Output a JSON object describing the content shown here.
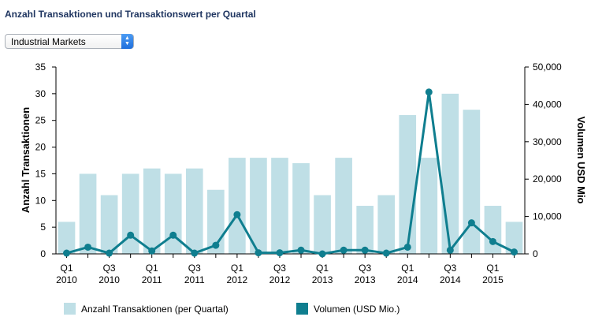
{
  "page": {
    "title": "Anzahl Transaktionen und Transaktionswert per Quartal"
  },
  "dropdown": {
    "selected": "Industrial Markets"
  },
  "chart_data": {
    "type": "bar",
    "categories": [
      "Q1 2010",
      "Q2 2010",
      "Q3 2010",
      "Q4 2010",
      "Q1 2011",
      "Q2 2011",
      "Q3 2011",
      "Q4 2011",
      "Q1 2012",
      "Q2 2012",
      "Q3 2012",
      "Q4 2012",
      "Q1 2013",
      "Q2 2013",
      "Q3 2013",
      "Q4 2013",
      "Q1 2014",
      "Q2 2014",
      "Q3 2014",
      "Q4 2014",
      "Q1 2015",
      "Q2 2015"
    ],
    "x_tick_labels": [
      {
        "index": 0,
        "quarter": "Q1",
        "year": "2010"
      },
      {
        "index": 2,
        "quarter": "Q3",
        "year": "2010"
      },
      {
        "index": 4,
        "quarter": "Q1",
        "year": "2011"
      },
      {
        "index": 6,
        "quarter": "Q3",
        "year": "2011"
      },
      {
        "index": 8,
        "quarter": "Q1",
        "year": "2012"
      },
      {
        "index": 10,
        "quarter": "Q3",
        "year": "2012"
      },
      {
        "index": 12,
        "quarter": "Q1",
        "year": "2013"
      },
      {
        "index": 14,
        "quarter": "Q3",
        "year": "2013"
      },
      {
        "index": 16,
        "quarter": "Q1",
        "year": "2014"
      },
      {
        "index": 18,
        "quarter": "Q3",
        "year": "2014"
      },
      {
        "index": 20,
        "quarter": "Q1",
        "year": "2015"
      }
    ],
    "series": [
      {
        "name": "Anzahl Transaktionen (per Quartal)",
        "type": "bar",
        "axis": "left",
        "color": "#bfdfe6",
        "values": [
          6,
          15,
          11,
          15,
          16,
          15,
          16,
          12,
          18,
          18,
          18,
          17,
          11,
          18,
          9,
          11,
          26,
          18,
          30,
          27,
          9,
          6
        ]
      },
      {
        "name": "Volumen (USD Mio.)",
        "type": "line",
        "axis": "right",
        "color": "#0f7e8f",
        "values": [
          200,
          1800,
          200,
          5000,
          800,
          5000,
          200,
          2300,
          10500,
          300,
          300,
          1000,
          0,
          1000,
          1000,
          200,
          1800,
          43300,
          1000,
          8300,
          3300,
          500
        ]
      }
    ],
    "y_left": {
      "label": "Anzahl Transaktionen",
      "min": 0,
      "max": 35,
      "ticks": [
        "0",
        "5",
        "10",
        "15",
        "20",
        "25",
        "30",
        "35"
      ]
    },
    "y_right": {
      "label": "Volumen USD Mio",
      "min": 0,
      "max": 50000,
      "ticks": [
        "0",
        "10,000",
        "20,000",
        "30,000",
        "40,000",
        "50,000"
      ]
    },
    "grid": false,
    "legend": "bottom"
  }
}
